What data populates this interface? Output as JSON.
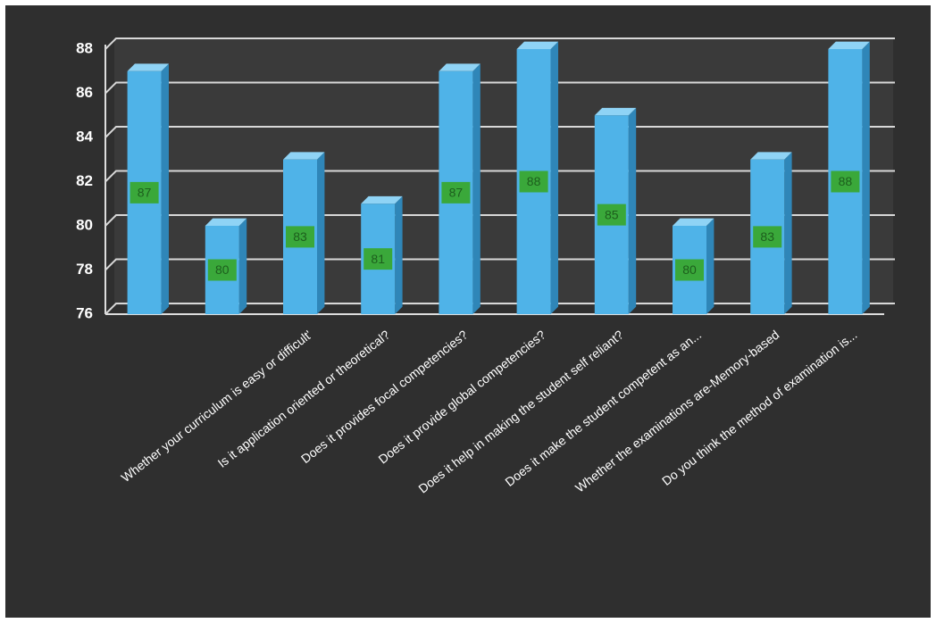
{
  "chart_data": {
    "type": "bar",
    "categories": [
      null,
      null,
      "Whether your curriculum is easy or difficult'",
      "Is it application oriented or theoretical?",
      "Does it provides focal competencies?",
      "Does it provide global competencies?",
      "Does it help in making the student self reliant?",
      "Does it make the student competent as an...",
      "Whether the examinations are-Memory-based",
      "Do you think the method of examination is..."
    ],
    "values": [
      87,
      80,
      83,
      81,
      87,
      88,
      85,
      80,
      83,
      88
    ],
    "color": "#4fb3e8",
    "label_color": "#3aa83a",
    "ylim": [
      76,
      88
    ],
    "yticks": [
      76,
      78,
      80,
      82,
      84,
      86,
      88
    ],
    "grid": true
  }
}
